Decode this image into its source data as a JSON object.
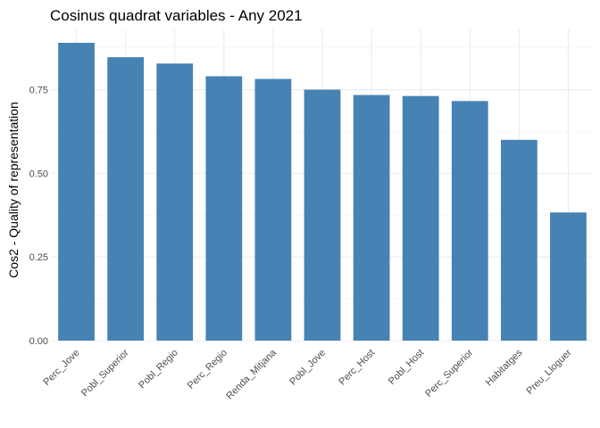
{
  "chart_data": {
    "type": "bar",
    "title": "Cosinus quadrat variables - Any 2021",
    "xlabel": "",
    "ylabel": "Cos2 - Quality of representation",
    "categories": [
      "Perc_Jove",
      "Pobl_Superior",
      "Pobl_Regio",
      "Perc_Regio",
      "Renda_Mitjana",
      "Pobl_Jove",
      "Perc_Host",
      "Pobl_Host",
      "Perc_Superior",
      "Habitatges",
      "Preu_Lloguer"
    ],
    "values": [
      0.89,
      0.847,
      0.828,
      0.79,
      0.782,
      0.75,
      0.734,
      0.731,
      0.716,
      0.6,
      0.383
    ],
    "ylim": [
      0,
      0.93
    ],
    "yticks": [
      0,
      0.25,
      0.5,
      0.75
    ],
    "ytick_labels": [
      "0.00",
      "0.25",
      "0.50",
      "0.75"
    ],
    "grid": true,
    "colors": {
      "bar": "#4682b4",
      "grid": "#ebebeb",
      "tick_text": "#4d4d4d"
    }
  }
}
